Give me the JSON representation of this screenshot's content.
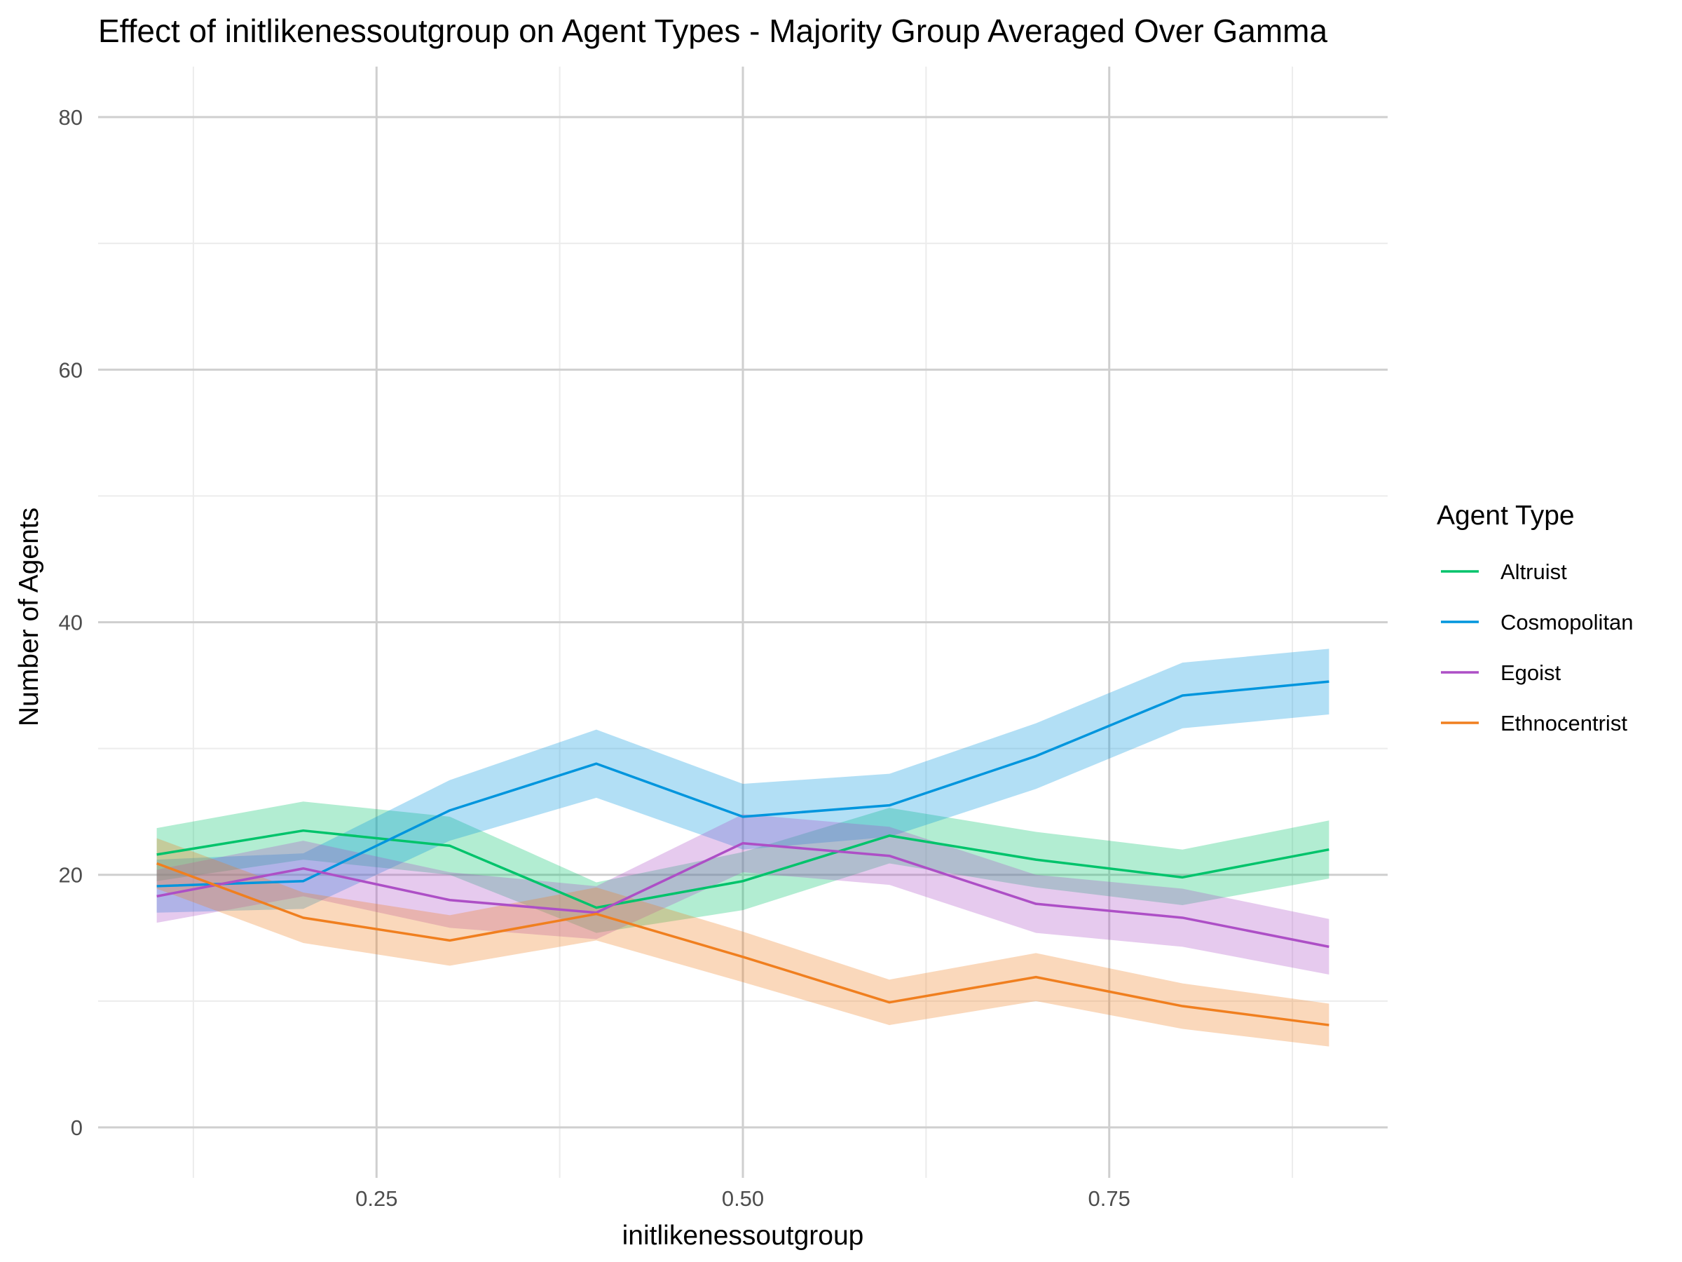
{
  "chart_data": {
    "type": "line",
    "title": "Effect of initlikenessoutgroup on Agent Types - Majority Group Averaged Over Gamma",
    "xlabel": "initlikenessoutgroup",
    "ylabel": "Number of Agents",
    "xlim": [
      0.06,
      0.94
    ],
    "ylim": [
      -4,
      84
    ],
    "x_ticks": [
      0.25,
      0.5,
      0.75
    ],
    "x_tick_labels": [
      "0.25",
      "0.50",
      "0.75"
    ],
    "y_ticks": [
      0,
      20,
      40,
      60,
      80
    ],
    "y_tick_labels": [
      "0",
      "20",
      "40",
      "60",
      "80"
    ],
    "grid": true,
    "legend": {
      "title": "Agent Type",
      "position": "right"
    },
    "x": [
      0.1,
      0.2,
      0.3,
      0.4,
      0.5,
      0.6,
      0.7,
      0.8,
      0.9
    ],
    "series": [
      {
        "name": "Altruist",
        "color": "#00c36b",
        "values": [
          21.6,
          23.5,
          22.3,
          17.4,
          19.5,
          23.1,
          21.2,
          19.8,
          22.0
        ],
        "lower": [
          19.5,
          21.2,
          20.0,
          15.4,
          17.2,
          20.9,
          19.0,
          17.6,
          19.7
        ],
        "upper": [
          23.7,
          25.8,
          24.6,
          19.4,
          21.8,
          25.3,
          23.4,
          22.0,
          24.3
        ]
      },
      {
        "name": "Cosmopolitan",
        "color": "#0095dd",
        "values": [
          19.1,
          19.5,
          25.1,
          28.8,
          24.6,
          25.5,
          29.4,
          34.2,
          35.3
        ],
        "lower": [
          17.0,
          17.3,
          22.7,
          26.1,
          22.0,
          23.0,
          26.8,
          31.6,
          32.7
        ],
        "upper": [
          21.2,
          21.7,
          27.5,
          31.5,
          27.2,
          28.0,
          32.0,
          36.8,
          37.9
        ]
      },
      {
        "name": "Egoist",
        "color": "#ad4fc6",
        "values": [
          18.3,
          20.5,
          18.0,
          17.0,
          22.5,
          21.5,
          17.7,
          16.6,
          14.3
        ],
        "lower": [
          16.2,
          18.3,
          15.8,
          14.9,
          20.2,
          19.2,
          15.4,
          14.3,
          12.1
        ],
        "upper": [
          20.4,
          22.7,
          20.2,
          19.1,
          24.8,
          23.8,
          20.0,
          18.9,
          16.5
        ]
      },
      {
        "name": "Ethnocentrist",
        "color": "#f07f1f",
        "values": [
          20.9,
          16.6,
          14.8,
          16.9,
          13.5,
          9.9,
          11.9,
          9.6,
          8.1
        ],
        "lower": [
          18.9,
          14.6,
          12.8,
          14.8,
          11.5,
          8.1,
          10.0,
          7.8,
          6.4
        ],
        "upper": [
          22.9,
          18.6,
          16.8,
          19.0,
          15.5,
          11.7,
          13.8,
          11.4,
          9.8
        ]
      }
    ]
  }
}
